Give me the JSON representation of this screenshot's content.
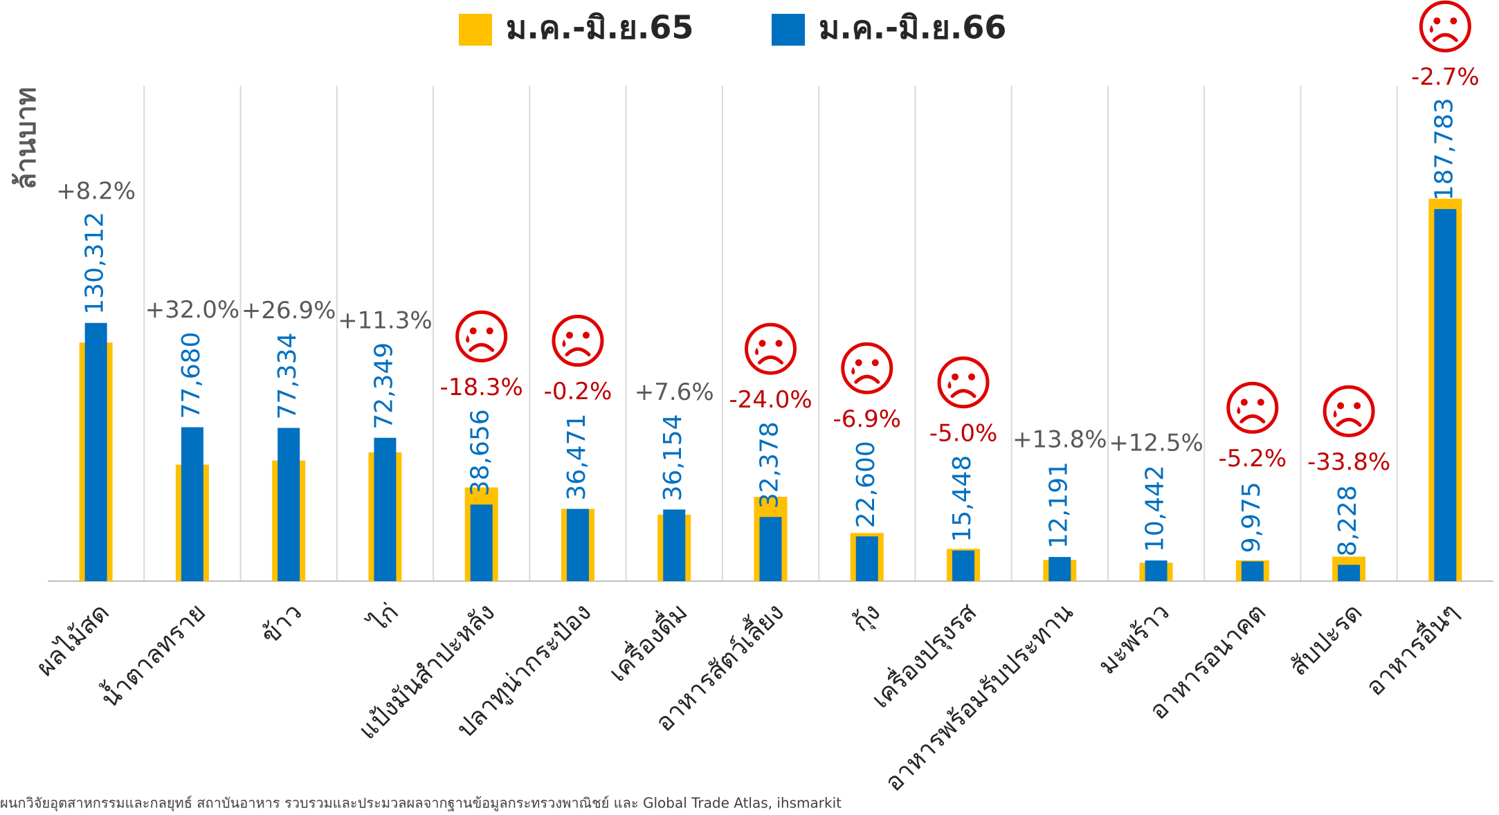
{
  "chart_data": {
    "type": "bar",
    "y_axis_label": "ล้านบาท",
    "source": "ผนกวิจัยอุตสาหกรรมและกลยุทธ์  สถาบันอาหาร รวบรวมและประมวลผลจากฐานข้อมูลกระทรวงพาณิชย์ และ Global Trade Atlas, ihsmarkit",
    "categories": [
      "ผลไม้สด",
      "น้ำตาลทราย",
      "ข้าว",
      "ไก่",
      "แป้งมันสำปะหลัง",
      "ปลาทูน่ากระป๋อง",
      "เครื่องดื่ม",
      "อาหารสัตว์เลี้ยง",
      "กุ้ง",
      "เครื่องปรุงรส",
      "อาหารพร้อมรับประทาน",
      "มะพร้าว",
      "อาหารอนาคต",
      "สับปะรด",
      "อาหารอื่นๆ"
    ],
    "series": [
      {
        "name": "ม.ค.-มิ.ย.65",
        "color": "#ffc000",
        "values": [
          120400,
          58800,
          60900,
          65000,
          47300,
          36500,
          33600,
          42600,
          24300,
          16300,
          10700,
          9300,
          10500,
          12400,
          193000
        ]
      },
      {
        "name": "ม.ค.-มิ.ย.66",
        "color": "#0070c0",
        "values": [
          130312,
          77680,
          77334,
          72349,
          38656,
          36471,
          36154,
          32378,
          22600,
          15448,
          12191,
          10442,
          9975,
          8228,
          187783
        ],
        "value_labels": [
          "130,312",
          "77,680",
          "77,334",
          "72,349",
          "38,656",
          "36,471",
          "36,154",
          "32,378",
          "22,600",
          "15,448",
          "12,191",
          "10,442",
          "9,975",
          "8,228",
          "187,783"
        ]
      }
    ],
    "change_labels": [
      "+8.2%",
      "+32.0%",
      "+26.9%",
      "+11.3%",
      "-18.3%",
      "-0.2%",
      "+7.6%",
      "-24.0%",
      "-6.9%",
      "-5.0%",
      "+13.8%",
      "+12.5%",
      "-5.2%",
      "-33.8%",
      "-2.7%"
    ],
    "ylim": [
      0,
      250000
    ],
    "grid": false
  }
}
